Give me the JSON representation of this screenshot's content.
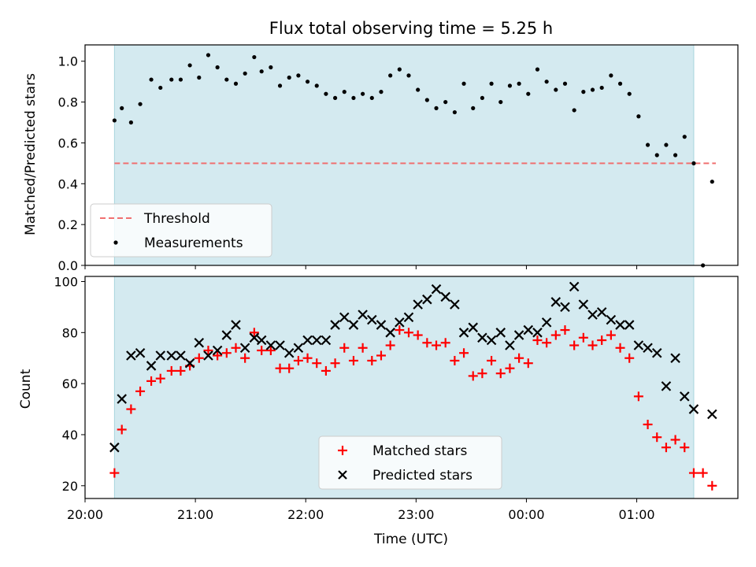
{
  "chart_data": [
    {
      "type": "scatter",
      "title": "Flux total observing time = 5.25 h",
      "xlabel": "",
      "ylabel": "Matched/Predicted stars",
      "ylim": [
        0,
        1.08
      ],
      "xlim": [
        "20:00",
        "01:55"
      ],
      "x_ticks": [
        "20:00",
        "21:00",
        "22:00",
        "23:00",
        "00:00",
        "01:00"
      ],
      "y_ticks": [
        "0.0",
        "0.2",
        "0.4",
        "0.6",
        "0.8",
        "1.0"
      ],
      "shaded_interval": [
        "20:16",
        "01:31"
      ],
      "shade_color": "#d4eaf0",
      "threshold": {
        "name": "Threshold",
        "value": 0.5,
        "x_range": [
          "20:16",
          "01:43"
        ],
        "color": "#f07070"
      },
      "series": [
        {
          "name": "Measurements",
          "color": "#000000",
          "x": [
            "20:16",
            "20:20",
            "20:25",
            "20:30",
            "20:36",
            "20:41",
            "20:47",
            "20:52",
            "20:57",
            "21:02",
            "21:07",
            "21:12",
            "21:17",
            "21:22",
            "21:27",
            "21:32",
            "21:36",
            "21:41",
            "21:46",
            "21:51",
            "21:56",
            "22:01",
            "22:06",
            "22:11",
            "22:16",
            "22:21",
            "22:26",
            "22:31",
            "22:36",
            "22:41",
            "22:46",
            "22:51",
            "22:56",
            "23:01",
            "23:06",
            "23:11",
            "23:16",
            "23:21",
            "23:26",
            "23:31",
            "23:36",
            "23:41",
            "23:46",
            "23:51",
            "23:56",
            "00:01",
            "00:06",
            "00:11",
            "00:16",
            "00:21",
            "00:26",
            "00:31",
            "00:36",
            "00:41",
            "00:46",
            "00:51",
            "00:56",
            "01:01",
            "01:06",
            "01:11",
            "01:16",
            "01:21",
            "01:26",
            "01:31",
            "01:36",
            "01:41"
          ],
          "values": [
            0.71,
            0.77,
            0.7,
            0.79,
            0.91,
            0.87,
            0.91,
            0.91,
            0.98,
            0.92,
            1.03,
            0.97,
            0.91,
            0.89,
            0.94,
            1.02,
            0.95,
            0.97,
            0.88,
            0.92,
            0.93,
            0.9,
            0.88,
            0.84,
            0.82,
            0.85,
            0.82,
            0.84,
            0.82,
            0.85,
            0.93,
            0.96,
            0.93,
            0.86,
            0.81,
            0.77,
            0.8,
            0.75,
            0.89,
            0.77,
            0.82,
            0.89,
            0.8,
            0.88,
            0.89,
            0.84,
            0.96,
            0.9,
            0.86,
            0.89,
            0.76,
            0.85,
            0.86,
            0.87,
            0.93,
            0.89,
            0.84,
            0.73,
            0.59,
            0.54,
            0.59,
            0.54,
            0.63,
            0.5,
            0.0,
            0.41
          ]
        }
      ]
    },
    {
      "type": "scatter",
      "xlabel": "Time (UTC)",
      "ylabel": "Count",
      "ylim": [
        15,
        102
      ],
      "xlim": [
        "20:00",
        "01:55"
      ],
      "x_ticks": [
        "20:00",
        "21:00",
        "22:00",
        "23:00",
        "00:00",
        "01:00"
      ],
      "y_ticks": [
        "20",
        "40",
        "60",
        "80",
        "100"
      ],
      "shaded_interval": [
        "20:16",
        "01:31"
      ],
      "shade_color": "#d4eaf0",
      "series": [
        {
          "name": "Matched stars",
          "marker": "plus",
          "color": "#ff0000",
          "x": [
            "20:16",
            "20:20",
            "20:25",
            "20:30",
            "20:36",
            "20:41",
            "20:47",
            "20:52",
            "20:57",
            "21:02",
            "21:07",
            "21:12",
            "21:17",
            "21:22",
            "21:27",
            "21:32",
            "21:36",
            "21:41",
            "21:46",
            "21:51",
            "21:56",
            "22:01",
            "22:06",
            "22:11",
            "22:16",
            "22:21",
            "22:26",
            "22:31",
            "22:36",
            "22:41",
            "22:46",
            "22:51",
            "22:56",
            "23:01",
            "23:06",
            "23:11",
            "23:16",
            "23:21",
            "23:26",
            "23:31",
            "23:36",
            "23:41",
            "23:46",
            "23:51",
            "23:56",
            "00:01",
            "00:06",
            "00:11",
            "00:16",
            "00:21",
            "00:26",
            "00:31",
            "00:36",
            "00:41",
            "00:46",
            "00:51",
            "00:56",
            "01:01",
            "01:06",
            "01:11",
            "01:16",
            "01:21",
            "01:26",
            "01:31",
            "01:36",
            "01:41"
          ],
          "values": [
            25,
            42,
            50,
            57,
            61,
            62,
            65,
            65,
            67,
            70,
            73,
            71,
            72,
            74,
            70,
            80,
            73,
            73,
            66,
            66,
            69,
            70,
            68,
            65,
            68,
            74,
            69,
            74,
            69,
            71,
            75,
            81,
            80,
            79,
            76,
            75,
            76,
            69,
            72,
            63,
            64,
            69,
            64,
            66,
            70,
            68,
            77,
            76,
            79,
            81,
            75,
            78,
            75,
            77,
            79,
            74,
            70,
            55,
            44,
            39,
            35,
            38,
            35,
            25,
            25,
            20
          ]
        },
        {
          "name": "Predicted stars",
          "marker": "x",
          "color": "#000000",
          "x": [
            "20:16",
            "20:20",
            "20:25",
            "20:30",
            "20:36",
            "20:41",
            "20:47",
            "20:52",
            "20:57",
            "21:02",
            "21:07",
            "21:12",
            "21:17",
            "21:22",
            "21:27",
            "21:32",
            "21:36",
            "21:41",
            "21:46",
            "21:51",
            "21:56",
            "22:01",
            "22:06",
            "22:11",
            "22:16",
            "22:21",
            "22:26",
            "22:31",
            "22:36",
            "22:41",
            "22:46",
            "22:51",
            "22:56",
            "23:01",
            "23:06",
            "23:11",
            "23:16",
            "23:21",
            "23:26",
            "23:31",
            "23:36",
            "23:41",
            "23:46",
            "23:51",
            "23:56",
            "00:01",
            "00:06",
            "00:11",
            "00:16",
            "00:21",
            "00:26",
            "00:31",
            "00:36",
            "00:41",
            "00:46",
            "00:51",
            "00:56",
            "01:01",
            "01:06",
            "01:11",
            "01:16",
            "01:21",
            "01:26",
            "01:31",
            "01:36",
            "01:41"
          ],
          "values": [
            35,
            54,
            71,
            72,
            67,
            71,
            71,
            71,
            68,
            76,
            71,
            73,
            79,
            83,
            74,
            78,
            77,
            75,
            75,
            72,
            74,
            77,
            77,
            77,
            83,
            86,
            83,
            87,
            85,
            83,
            80,
            84,
            86,
            91,
            93,
            97,
            94,
            91,
            80,
            82,
            78,
            77,
            80,
            75,
            79,
            81,
            80,
            84,
            92,
            90,
            98,
            91,
            87,
            88,
            85,
            83,
            83,
            75,
            74,
            72,
            59,
            70,
            55,
            50,
            null,
            48
          ]
        }
      ]
    }
  ]
}
